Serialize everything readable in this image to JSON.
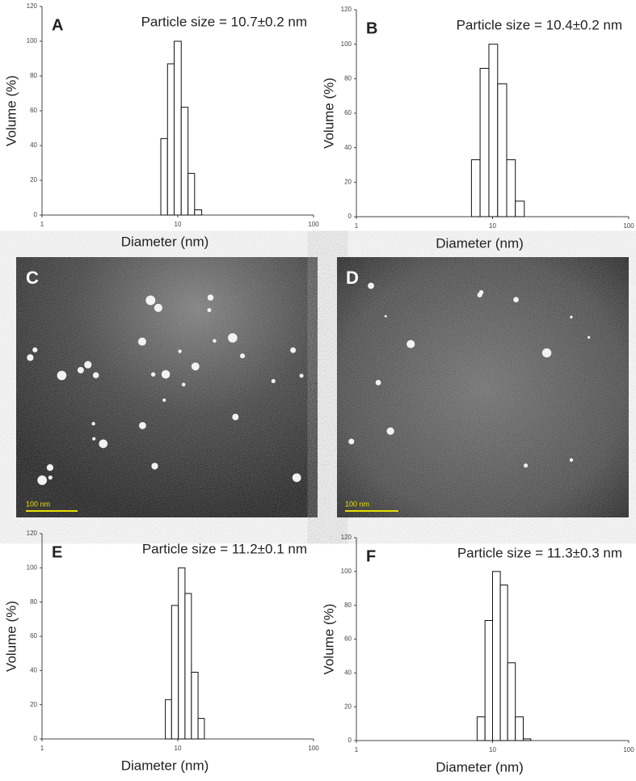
{
  "chart_data": [
    {
      "type": "histogram",
      "panel": "A",
      "title": "Particle size = 10.7±0.2 nm",
      "x_label": "Diameter (nm)",
      "y_label": "Volume (%)",
      "bins": [
        7.5,
        8.4,
        9.4,
        10.6,
        11.9,
        13.3,
        15.0
      ],
      "values": [
        44,
        87,
        100,
        62,
        24,
        3
      ],
      "color": "#ffffff",
      "xlim": [
        1,
        100
      ],
      "xticks": [
        1,
        10,
        100
      ],
      "x_log": true,
      "ylim": [
        0,
        120
      ],
      "yticks": [
        0,
        20,
        40,
        60,
        80,
        100,
        120
      ]
    },
    {
      "type": "histogram",
      "panel": "B",
      "title": "Particle size = 10.4±0.2 nm",
      "x_label": "Diameter (nm)",
      "y_label": "Volume (%)",
      "bins": [
        7.0,
        8.1,
        9.4,
        10.9,
        12.7,
        14.7,
        17.1
      ],
      "values": [
        33,
        86,
        100,
        77,
        33,
        9
      ],
      "color": "#ffffff",
      "xlim": [
        1,
        100
      ],
      "xticks": [
        1,
        10,
        100
      ],
      "x_log": true,
      "ylim": [
        0,
        120
      ],
      "yticks": [
        0,
        20,
        40,
        60,
        80,
        100,
        120
      ]
    },
    {
      "type": "histogram",
      "panel": "E",
      "title": "Particle size = 11.2±0.1 nm",
      "x_label": "Diameter (nm)",
      "y_label": "Volume (%)",
      "bins": [
        8.1,
        9.0,
        10.1,
        11.3,
        12.6,
        14.1,
        15.7
      ],
      "values": [
        23,
        78,
        100,
        85,
        39,
        12
      ],
      "color": "#ffffff",
      "xlim": [
        1,
        100
      ],
      "xticks": [
        1,
        10,
        100
      ],
      "x_log": true,
      "ylim": [
        0,
        120
      ],
      "yticks": [
        0,
        20,
        40,
        60,
        80,
        100,
        120
      ]
    },
    {
      "type": "histogram",
      "panel": "F",
      "title": "Particle size = 11.3±0.3 nm",
      "x_label": "Diameter (nm)",
      "y_label": "Volume (%)",
      "bins": [
        7.7,
        8.8,
        10.0,
        11.4,
        12.9,
        14.7,
        16.8,
        19.1
      ],
      "values": [
        14,
        71,
        100,
        92,
        46,
        14,
        1
      ],
      "color": "#ffffff",
      "xlim": [
        1,
        100
      ],
      "xticks": [
        1,
        10,
        100
      ],
      "x_log": true,
      "ylim": [
        0,
        120
      ],
      "yticks": [
        0,
        20,
        40,
        60,
        80,
        100,
        120
      ]
    }
  ],
  "images": [
    {
      "panel": "C",
      "scale_bar": "100 nm"
    },
    {
      "panel": "D",
      "scale_bar": "100 nm"
    }
  ]
}
